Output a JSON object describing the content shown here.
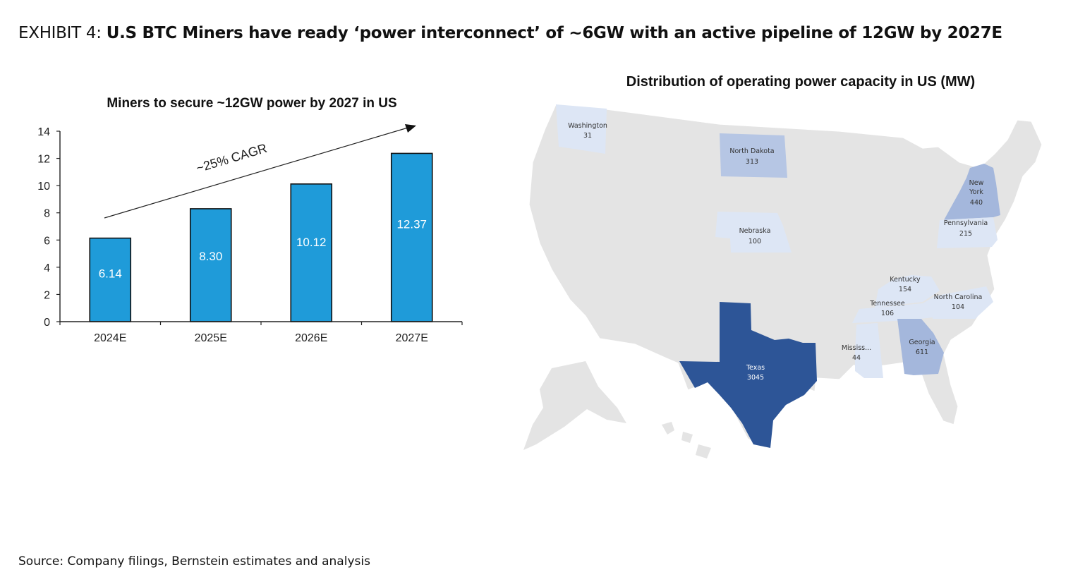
{
  "exhibit": {
    "prefix": "EXHIBIT 4: ",
    "headline": "U.S BTC Miners have ready ‘power interconnect’ of ~6GW with an active pipeline of 12GW by 2027E"
  },
  "source": "Source: Company filings, Bernstein estimates and analysis",
  "chart_data": [
    {
      "type": "bar",
      "title": "Miners to secure ~12GW power by 2027 in US",
      "categories": [
        "2024E",
        "2025E",
        "2026E",
        "2027E"
      ],
      "values": [
        6.14,
        8.3,
        10.12,
        12.37
      ],
      "value_labels": [
        "6.14",
        "8.30",
        "10.12",
        "12.37"
      ],
      "ylim": [
        0,
        14
      ],
      "yticks": [
        0,
        2,
        4,
        6,
        8,
        10,
        12,
        14
      ],
      "xlabel": "",
      "ylabel": "",
      "annotation": "~25% CAGR",
      "bar_color": "#1f9bd9",
      "grid": false
    },
    {
      "type": "map",
      "title": "Distribution of operating power capacity in US (MW)",
      "regions": [
        {
          "name": "Washington",
          "value": 31
        },
        {
          "name": "North Dakota",
          "value": 313
        },
        {
          "name": "New York",
          "value": 440
        },
        {
          "name": "Pennsylvania",
          "value": 215
        },
        {
          "name": "Nebraska",
          "value": 100
        },
        {
          "name": "Kentucky",
          "value": 154
        },
        {
          "name": "Tennessee",
          "value": 106
        },
        {
          "name": "North Carolina",
          "value": 104
        },
        {
          "name": "Mississ...",
          "value": 44
        },
        {
          "name": "Georgia",
          "value": 611
        },
        {
          "name": "Texas",
          "value": 3045
        }
      ],
      "colors": {
        "base": "#e4e4e4",
        "low": "#dde6f5",
        "mid": "#b6c6e4",
        "high": "#a4b7dc",
        "max": "#2d5597"
      }
    }
  ]
}
